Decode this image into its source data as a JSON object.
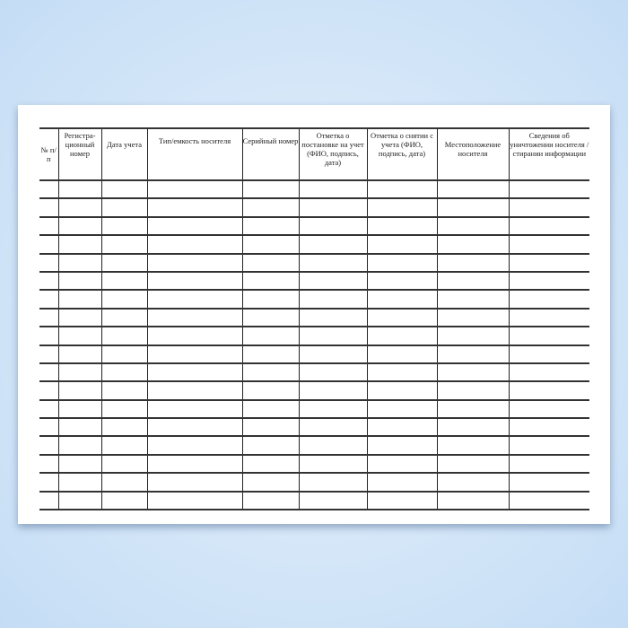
{
  "document": {
    "columns": [
      "№ п/п",
      "Регистра-ционный номер",
      "Дата учета",
      "Тип/емкость носителя",
      "Серийный номер",
      "Отметка о постановке на учет (ФИО, подпись, дата)",
      "Отметка о снятии с учета (ФИО, подпись, дата)",
      "Местоположение носителя",
      "Сведения об уничтожении носителя /стирании информации"
    ],
    "empty_row_count": 18
  }
}
